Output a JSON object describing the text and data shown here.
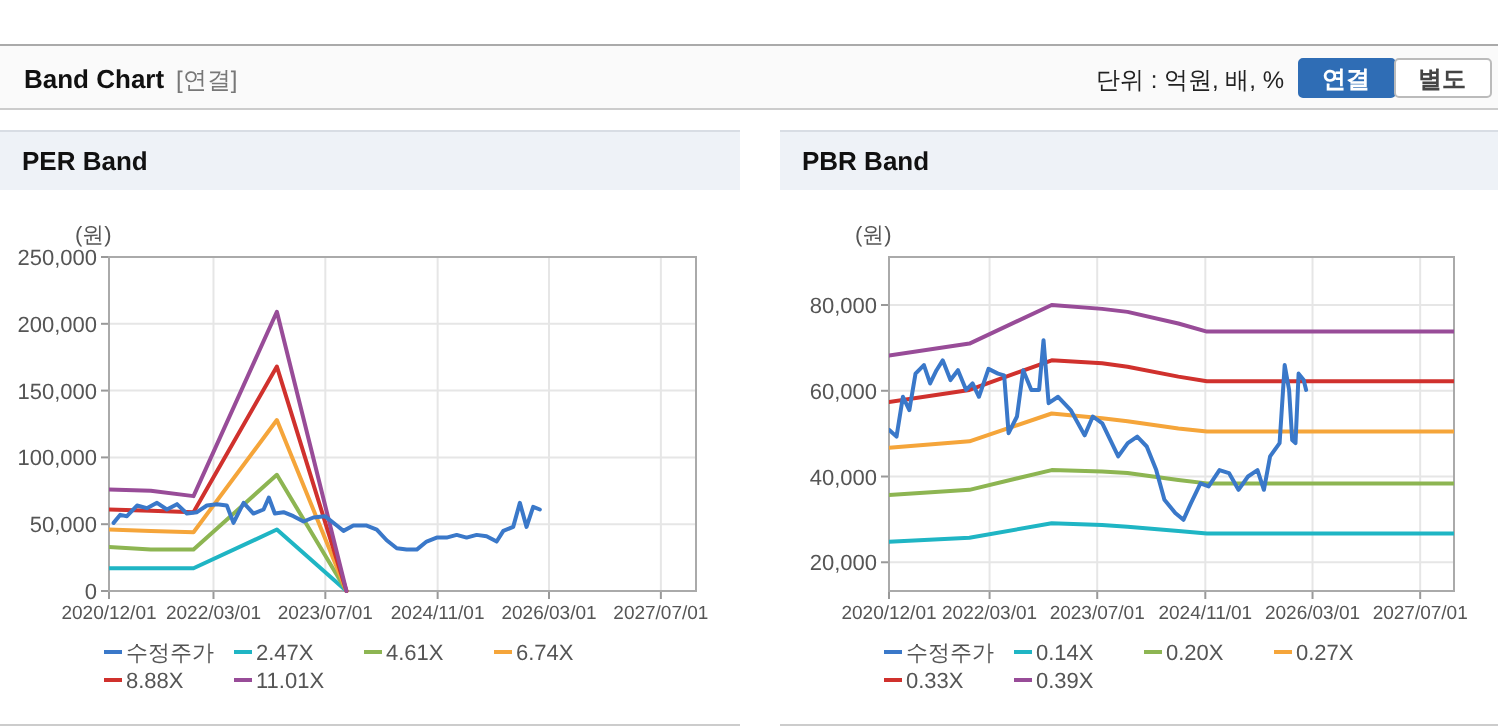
{
  "chart_data": [
    {
      "type": "other",
      "title": "Band Chart",
      "subtitle": "[연결]",
      "annotations": [
        "단위 : 억원, 배, %",
        "연결",
        "별도"
      ]
    },
    {
      "type": "line",
      "title": "PER Band",
      "ylabel": "(원)",
      "xlim": [
        "2020-12-01",
        "2027-12-01"
      ],
      "ylim": [
        0,
        250000
      ],
      "xticks": [
        {
          "value": "2020-12-01",
          "label": "2020/12/01"
        },
        {
          "value": "2022-03-01",
          "label": "2022/03/01"
        },
        {
          "value": "2023-07-01",
          "label": "2023/07/01"
        },
        {
          "value": "2024-11-01",
          "label": "2024/11/01"
        },
        {
          "value": "2026-03-01",
          "label": "2026/03/01"
        },
        {
          "value": "2027-07-01",
          "label": "2027/07/01"
        }
      ],
      "yticks": [
        {
          "value": 0,
          "label": "0"
        },
        {
          "value": 50000,
          "label": "50,000"
        },
        {
          "value": 100000,
          "label": "100,000"
        },
        {
          "value": 150000,
          "label": "150,000"
        },
        {
          "value": 200000,
          "label": "200,000"
        },
        {
          "value": 250000,
          "label": "250,000"
        }
      ],
      "grid": true,
      "legend": "bottom",
      "series": [
        {
          "name": "수정주가",
          "color": "#3a78c9",
          "x": [
            "2020-12-21",
            "2021-01-19",
            "2021-02-17",
            "2021-04-02",
            "2021-05-15",
            "2021-06-28",
            "2021-08-10",
            "2021-09-23",
            "2021-11-05",
            "2021-12-19",
            "2022-01-31",
            "2022-03-16",
            "2022-04-28",
            "2022-05-27",
            "2022-07-10",
            "2022-08-22",
            "2022-10-05",
            "2022-10-28",
            "2022-11-23",
            "2022-12-31",
            "2023-02-12",
            "2023-03-28",
            "2023-05-10",
            "2023-06-29",
            "2023-08-20",
            "2023-09-18",
            "2023-10-31",
            "2023-12-28",
            "2024-02-10",
            "2024-03-24",
            "2024-05-07",
            "2024-06-19",
            "2024-08-02",
            "2024-09-14",
            "2024-10-28",
            "2024-12-10",
            "2025-01-23",
            "2025-03-07",
            "2025-04-20",
            "2025-06-02",
            "2025-07-16",
            "2025-08-14",
            "2025-09-26",
            "2025-10-25",
            "2025-11-23",
            "2025-12-22",
            "2026-01-20"
          ],
          "values": [
            51000,
            57000,
            56000,
            64000,
            62000,
            66000,
            61000,
            65000,
            58000,
            59000,
            64000,
            65000,
            64000,
            51000,
            66000,
            58000,
            61000,
            70000,
            58000,
            59000,
            56000,
            52000,
            55000,
            56000,
            49000,
            45000,
            49000,
            49000,
            46000,
            38000,
            32000,
            31000,
            31000,
            37000,
            40000,
            40000,
            42000,
            40000,
            42000,
            41000,
            37000,
            45000,
            48000,
            66000,
            48000,
            63000,
            61000
          ]
        },
        {
          "name": "2.47X",
          "color": "#1fb5c4",
          "x": [
            "2020-12-01",
            "2021-06-01",
            "2021-12-04",
            "2022-12-02",
            "2023-10-01"
          ],
          "values": [
            17000,
            17000,
            17000,
            46000,
            0
          ]
        },
        {
          "name": "4.61X",
          "color": "#8db552",
          "x": [
            "2020-12-01",
            "2021-06-01",
            "2021-12-04",
            "2022-12-02",
            "2023-10-01"
          ],
          "values": [
            33000,
            31000,
            31000,
            87000,
            0
          ]
        },
        {
          "name": "6.74X",
          "color": "#f5a53a",
          "x": [
            "2020-12-01",
            "2021-06-01",
            "2021-12-04",
            "2022-12-02",
            "2023-10-01"
          ],
          "values": [
            46000,
            45000,
            44000,
            128000,
            0
          ]
        },
        {
          "name": "8.88X",
          "color": "#d0312d",
          "x": [
            "2020-12-01",
            "2021-06-01",
            "2021-12-04",
            "2022-12-02",
            "2023-10-01"
          ],
          "values": [
            61000,
            60000,
            59000,
            168000,
            0
          ]
        },
        {
          "name": "11.01X",
          "color": "#984c98",
          "x": [
            "2020-12-01",
            "2021-06-01",
            "2021-12-04",
            "2022-12-02",
            "2023-10-01"
          ],
          "values": [
            76000,
            75000,
            71000,
            209000,
            0
          ]
        }
      ]
    },
    {
      "type": "line",
      "title": "PBR Band",
      "ylabel": "(원)",
      "xlim": [
        "2020-12-01",
        "2027-12-01"
      ],
      "ylim": [
        13300,
        91200
      ],
      "xticks": [
        {
          "value": "2020-12-01",
          "label": "2020/12/01"
        },
        {
          "value": "2022-03-01",
          "label": "2022/03/01"
        },
        {
          "value": "2023-07-01",
          "label": "2023/07/01"
        },
        {
          "value": "2024-11-01",
          "label": "2024/11/01"
        },
        {
          "value": "2026-03-01",
          "label": "2026/03/01"
        },
        {
          "value": "2027-07-01",
          "label": "2027/07/01"
        }
      ],
      "yticks": [
        {
          "value": 20000,
          "label": "20,000"
        },
        {
          "value": 40000,
          "label": "40,000"
        },
        {
          "value": 60000,
          "label": "60,000"
        },
        {
          "value": 80000,
          "label": "80,000"
        }
      ],
      "grid": true,
      "legend": "bottom",
      "series": [
        {
          "name": "수정주가",
          "color": "#3a78c9",
          "x": [
            "2020-12-01",
            "2021-01-04",
            "2021-02-02",
            "2021-03-03",
            "2021-03-31",
            "2021-05-08",
            "2021-06-05",
            "2021-07-04",
            "2021-08-01",
            "2021-09-05",
            "2021-10-09",
            "2021-11-15",
            "2021-12-14",
            "2022-01-12",
            "2022-02-24",
            "2022-04-08",
            "2022-05-06",
            "2022-05-26",
            "2022-07-03",
            "2022-07-31",
            "2022-09-06",
            "2022-10-11",
            "2022-10-31",
            "2022-11-23",
            "2023-01-05",
            "2023-03-03",
            "2023-05-05",
            "2023-06-11",
            "2023-07-24",
            "2023-10-04",
            "2023-11-16",
            "2023-12-29",
            "2024-02-10",
            "2024-03-24",
            "2024-04-30",
            "2024-06-18",
            "2024-07-25",
            "2024-08-28",
            "2024-10-10",
            "2024-11-16",
            "2025-01-04",
            "2025-02-16",
            "2025-03-31",
            "2025-05-13",
            "2025-06-25",
            "2025-07-24",
            "2025-08-21",
            "2025-10-03",
            "2025-10-26",
            "2025-11-15",
            "2025-11-29",
            "2025-12-14",
            "2025-12-28",
            "2026-01-20",
            "2026-01-31"
          ],
          "values": [
            50900,
            49300,
            58600,
            55500,
            64000,
            66000,
            61700,
            64800,
            67100,
            62500,
            64800,
            60200,
            61700,
            58600,
            65100,
            64000,
            63600,
            50100,
            54000,
            64800,
            60200,
            60200,
            71800,
            57100,
            58600,
            55500,
            49600,
            54000,
            52400,
            44700,
            47800,
            49300,
            47000,
            41500,
            34600,
            31500,
            29900,
            33800,
            38400,
            37700,
            41500,
            40800,
            36900,
            40000,
            41500,
            36900,
            44700,
            47800,
            66000,
            60200,
            48500,
            47800,
            64000,
            62500,
            60200
          ]
        },
        {
          "name": "0.14X",
          "color": "#1fb5c4",
          "x": [
            "2020-12-01",
            "2021-11-30",
            "2022-12-07",
            "2023-07-23",
            "2023-11-15",
            "2024-07-02",
            "2024-11-08",
            "2027-12-01"
          ],
          "values": [
            24800,
            25700,
            29100,
            28700,
            28300,
            27300,
            26700,
            26700
          ]
        },
        {
          "name": "0.20X",
          "color": "#8db552",
          "x": [
            "2020-12-01",
            "2021-11-30",
            "2022-12-07",
            "2023-07-23",
            "2023-11-15",
            "2024-07-02",
            "2024-11-08",
            "2027-12-01"
          ],
          "values": [
            35700,
            36900,
            41500,
            41200,
            40800,
            39200,
            38400,
            38400
          ]
        },
        {
          "name": "0.27X",
          "color": "#f5a53a",
          "x": [
            "2020-12-01",
            "2021-11-30",
            "2022-12-07",
            "2023-07-23",
            "2023-11-15",
            "2024-07-02",
            "2024-11-08",
            "2027-12-01"
          ],
          "values": [
            46700,
            48200,
            54700,
            53600,
            52900,
            51200,
            50500,
            50500
          ]
        },
        {
          "name": "0.33X",
          "color": "#d0312d",
          "x": [
            "2020-12-01",
            "2021-11-30",
            "2022-12-07",
            "2023-07-23",
            "2023-11-15",
            "2024-07-02",
            "2024-11-08",
            "2027-12-01"
          ],
          "values": [
            57400,
            60200,
            67100,
            66400,
            65600,
            63300,
            62200,
            62200
          ]
        },
        {
          "name": "0.39X",
          "color": "#984c98",
          "x": [
            "2020-12-01",
            "2021-11-30",
            "2022-12-07",
            "2023-07-23",
            "2023-11-15",
            "2024-07-02",
            "2024-11-08",
            "2027-12-01"
          ],
          "values": [
            68200,
            71000,
            80000,
            79100,
            78400,
            75700,
            73800,
            73800
          ]
        }
      ]
    }
  ]
}
